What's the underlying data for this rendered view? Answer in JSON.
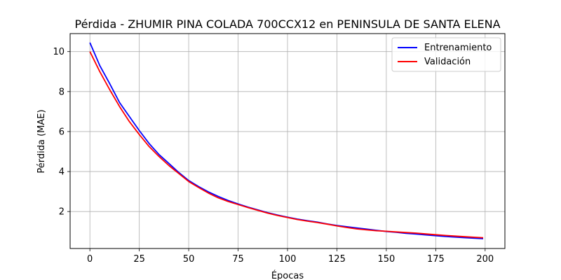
{
  "chart_data": {
    "type": "line",
    "title": "Pérdida - ZHUMIR PINA COLADA 700CCX12 en PENINSULA DE SANTA ELENA",
    "xlabel": "Épocas",
    "ylabel": "Pérdida (MAE)",
    "xlim": [
      -10,
      210
    ],
    "ylim": [
      0.15,
      10.9
    ],
    "xticks": [
      0,
      25,
      50,
      75,
      100,
      125,
      150,
      175,
      200
    ],
    "yticks": [
      2,
      4,
      6,
      8,
      10
    ],
    "grid": true,
    "legend": "top-right",
    "x": [
      0,
      5,
      10,
      15,
      20,
      25,
      30,
      35,
      40,
      45,
      50,
      55,
      60,
      65,
      70,
      75,
      80,
      85,
      90,
      95,
      100,
      105,
      110,
      115,
      120,
      125,
      130,
      135,
      140,
      145,
      150,
      155,
      160,
      165,
      170,
      175,
      180,
      185,
      190,
      195,
      199
    ],
    "series": [
      {
        "name": "Entrenamiento",
        "color": "#0000ff",
        "values": [
          10.45,
          9.3,
          8.4,
          7.45,
          6.75,
          6.05,
          5.4,
          4.85,
          4.4,
          3.95,
          3.55,
          3.25,
          2.98,
          2.75,
          2.55,
          2.38,
          2.22,
          2.08,
          1.94,
          1.82,
          1.72,
          1.62,
          1.54,
          1.47,
          1.38,
          1.3,
          1.24,
          1.18,
          1.12,
          1.06,
          1.0,
          0.96,
          0.91,
          0.87,
          0.83,
          0.79,
          0.75,
          0.72,
          0.69,
          0.66,
          0.64
        ]
      },
      {
        "name": "Validación",
        "color": "#ff0000",
        "values": [
          10.0,
          9.0,
          8.1,
          7.25,
          6.5,
          5.85,
          5.25,
          4.75,
          4.3,
          3.9,
          3.5,
          3.2,
          2.92,
          2.68,
          2.5,
          2.35,
          2.2,
          2.06,
          1.92,
          1.8,
          1.7,
          1.6,
          1.52,
          1.45,
          1.37,
          1.28,
          1.2,
          1.13,
          1.08,
          1.04,
          1.01,
          0.98,
          0.95,
          0.92,
          0.88,
          0.84,
          0.8,
          0.77,
          0.74,
          0.71,
          0.69
        ]
      }
    ]
  }
}
